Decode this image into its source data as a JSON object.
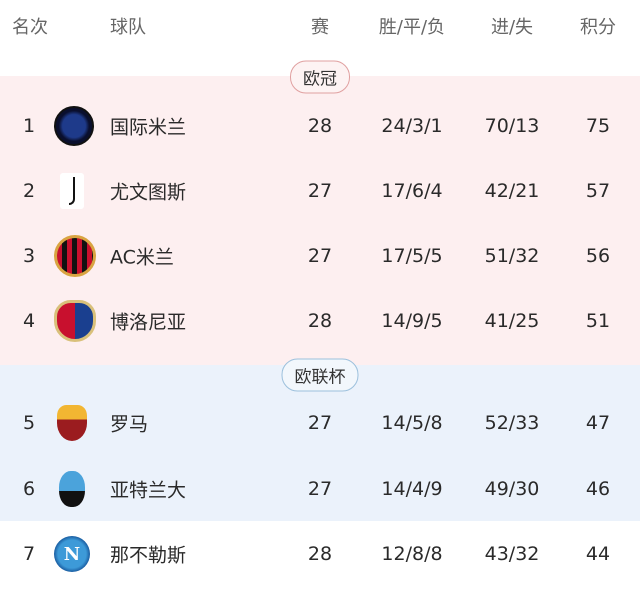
{
  "header": {
    "rank": "名次",
    "team": "球队",
    "played": "赛",
    "wdl": "胜/平/负",
    "goals": "进/失",
    "points": "积分"
  },
  "zones": [
    {
      "label": "欧冠",
      "color": "#fdeff0"
    },
    {
      "label": "欧联杯",
      "color": "#ebf2fb"
    }
  ],
  "rows": [
    {
      "rank": "1",
      "team": "国际米兰",
      "played": "28",
      "wdl": "24/3/1",
      "goals": "70/13",
      "points": "75",
      "logo": "inter-logo"
    },
    {
      "rank": "2",
      "team": "尤文图斯",
      "played": "27",
      "wdl": "17/6/4",
      "goals": "42/21",
      "points": "57",
      "logo": "juventus-logo"
    },
    {
      "rank": "3",
      "team": "AC米兰",
      "played": "27",
      "wdl": "17/5/5",
      "goals": "51/32",
      "points": "56",
      "logo": "ac-milan-logo"
    },
    {
      "rank": "4",
      "team": "博洛尼亚",
      "played": "28",
      "wdl": "14/9/5",
      "goals": "41/25",
      "points": "51",
      "logo": "bologna-logo"
    },
    {
      "rank": "5",
      "team": "罗马",
      "played": "27",
      "wdl": "14/5/8",
      "goals": "52/33",
      "points": "47",
      "logo": "roma-logo"
    },
    {
      "rank": "6",
      "team": "亚特兰大",
      "played": "27",
      "wdl": "14/4/9",
      "goals": "49/30",
      "points": "46",
      "logo": "atalanta-logo"
    },
    {
      "rank": "7",
      "team": "那不勒斯",
      "played": "28",
      "wdl": "12/8/8",
      "goals": "43/32",
      "points": "44",
      "logo": "napoli-logo"
    }
  ]
}
